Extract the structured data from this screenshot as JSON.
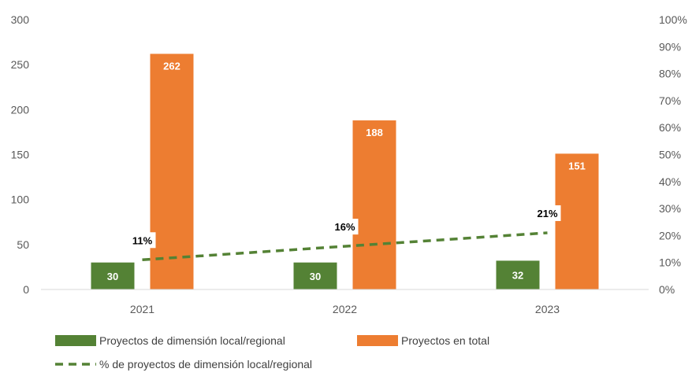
{
  "chart_data": {
    "type": "bar",
    "categories": [
      "2021",
      "2022",
      "2023"
    ],
    "series": [
      {
        "name": "Proyectos de dimensión local/regional",
        "type": "bar",
        "axis": "left",
        "values": [
          30,
          30,
          32
        ],
        "labels": [
          "30",
          "30",
          "32"
        ]
      },
      {
        "name": "Proyectos en total",
        "type": "bar",
        "axis": "left",
        "values": [
          262,
          188,
          151
        ],
        "labels": [
          "262",
          "188",
          "151"
        ]
      },
      {
        "name": "% de proyectos de dimensión local/regional",
        "type": "line",
        "axis": "right",
        "style": "dashed",
        "values": [
          11,
          16,
          21
        ],
        "labels": [
          "11%",
          "16%",
          "21%"
        ]
      }
    ],
    "ylim": [
      0,
      300
    ],
    "yticks": [
      "0",
      "50",
      "100",
      "150",
      "200",
      "250",
      "300"
    ],
    "y2lim": [
      0,
      100
    ],
    "y2ticks": [
      "0%",
      "10%",
      "20%",
      "30%",
      "40%",
      "50%",
      "60%",
      "70%",
      "80%",
      "90%",
      "100%"
    ],
    "grid": false,
    "legend_position": "bottom-left",
    "colors": {
      "local": "#548235",
      "total": "#ED7D31",
      "line": "#548235",
      "text": "#595959",
      "axis": "#D9D9D9"
    }
  }
}
